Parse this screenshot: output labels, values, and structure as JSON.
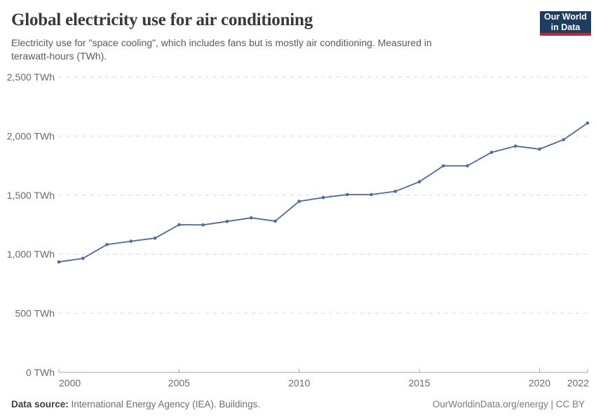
{
  "header": {
    "title": "Global electricity use for air conditioning",
    "subtitle": "Electricity use for \"space cooling\", which includes fans but is mostly air conditioning. Measured in terawatt-hours (TWh).",
    "logo": {
      "line1": "Our World",
      "line2": "in Data",
      "bg_color": "#1d3d63",
      "accent_color": "#c0262d"
    }
  },
  "chart_data": {
    "type": "line",
    "title": "Global electricity use for air conditioning",
    "x": [
      2000,
      2001,
      2002,
      2003,
      2004,
      2005,
      2006,
      2007,
      2008,
      2009,
      2010,
      2011,
      2012,
      2013,
      2014,
      2015,
      2016,
      2017,
      2018,
      2019,
      2020,
      2021,
      2022
    ],
    "values": [
      935,
      965,
      1082,
      1110,
      1136,
      1250,
      1248,
      1278,
      1308,
      1280,
      1448,
      1480,
      1505,
      1505,
      1532,
      1613,
      1748,
      1748,
      1862,
      1915,
      1890,
      1970,
      2110
    ],
    "unit": "TWh",
    "xlim": [
      2000,
      2022
    ],
    "ylim": [
      0,
      2500
    ],
    "xticks": [
      2000,
      2005,
      2010,
      2015,
      2020,
      2022
    ],
    "yticks": [
      0,
      500,
      1000,
      1500,
      2000,
      2500
    ],
    "ytick_suffix": " TWh",
    "grid": "horizontal-dashed",
    "legend": "none",
    "line_color": "#4d6b9f",
    "grid_color": "#d9d9d9",
    "axis_color": "#a8a8a8",
    "tick_label_color": "#6b6b6b",
    "markers": true
  },
  "footer": {
    "source_label": "Data source:",
    "source_value": "International Energy Agency (IEA). Buildings.",
    "credit": "OurWorldinData.org/energy | CC BY"
  }
}
